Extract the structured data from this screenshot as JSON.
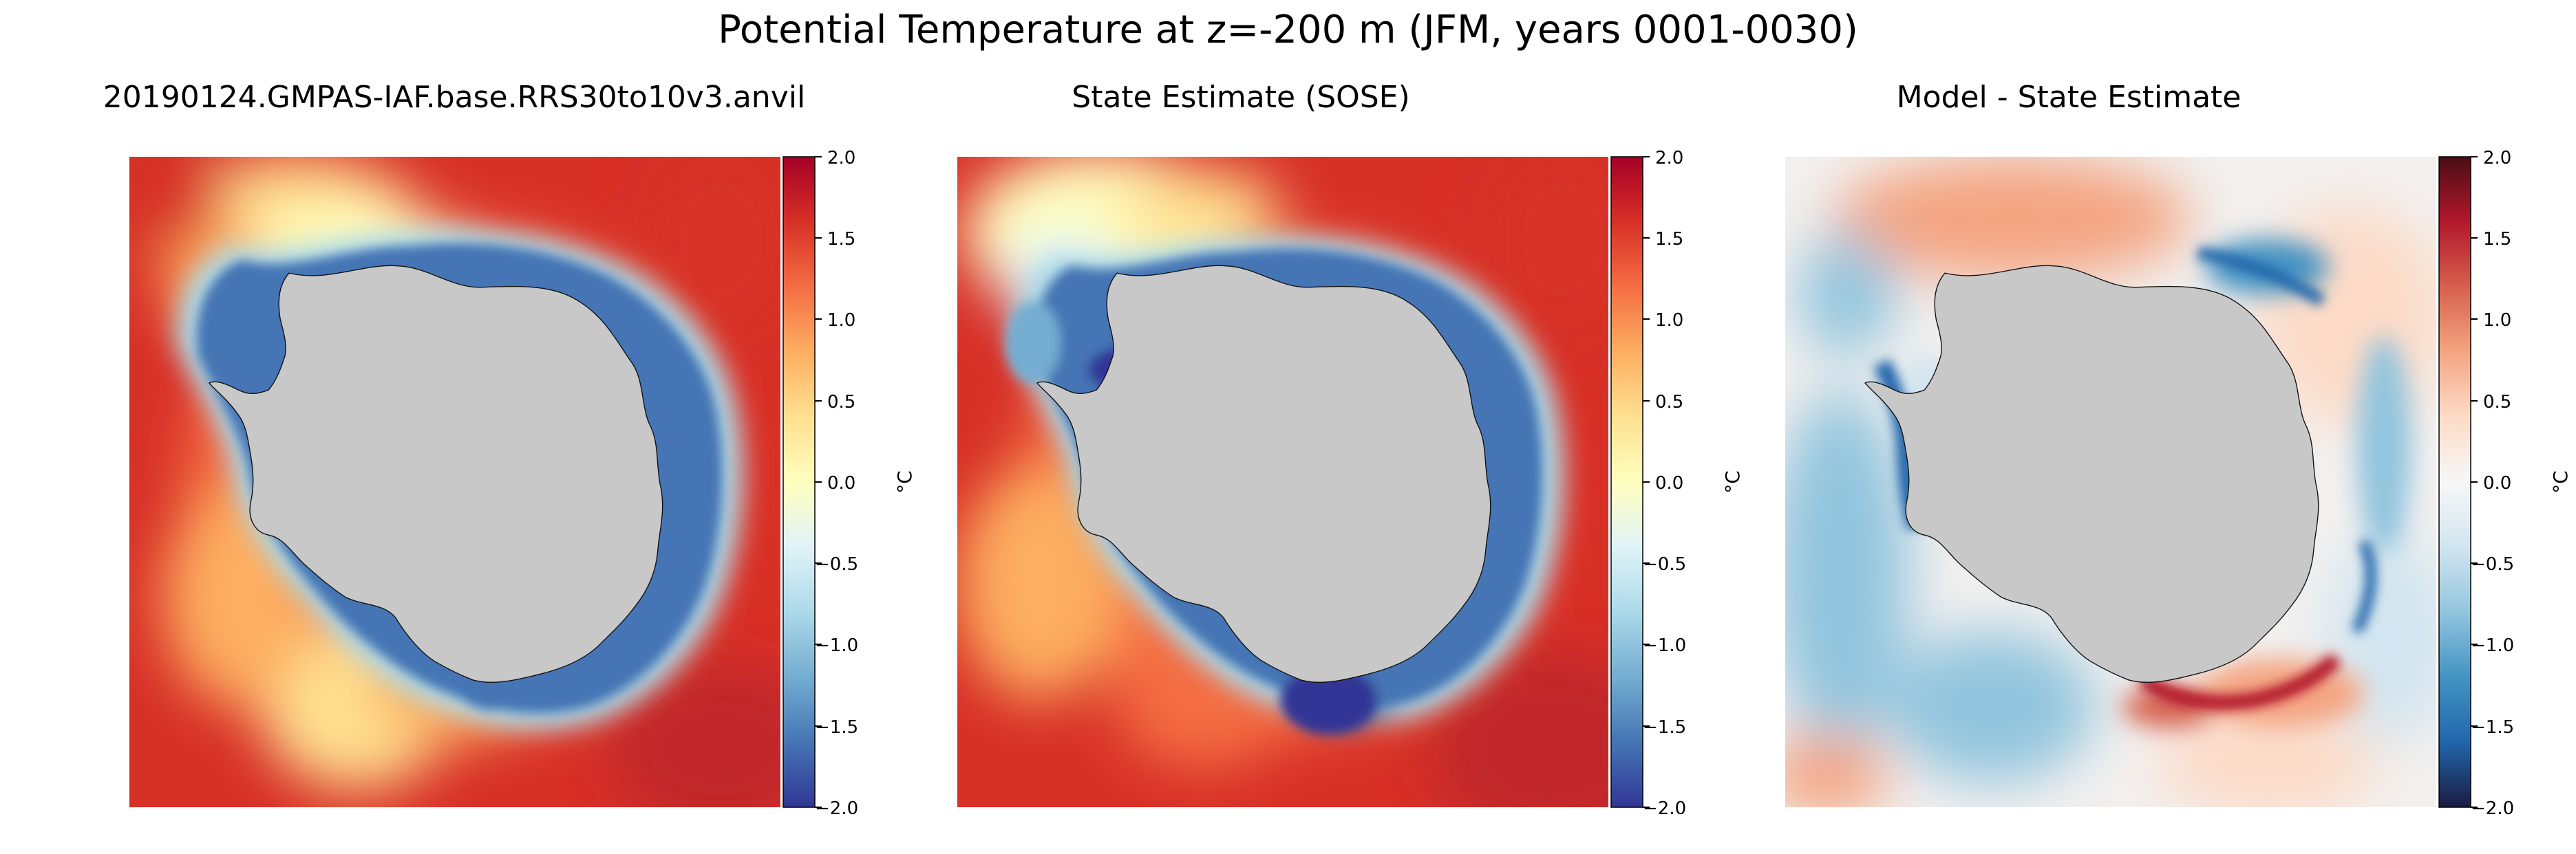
{
  "figure": {
    "title": "Potential Temperature at z=-200 m (JFM, years 0001-0030)"
  },
  "panels": [
    {
      "title": "20190124.GMPAS-IAF.base.RRS30to10v3.anvil",
      "colormap": "RdYlBu_r",
      "colorbar": {
        "label": "°C",
        "ticks": [
          "2.0",
          "1.5",
          "1.0",
          "0.5",
          "0.0",
          "−0.5",
          "−1.0",
          "−1.5",
          "−2.0"
        ]
      }
    },
    {
      "title": "State Estimate (SOSE)",
      "colormap": "RdYlBu_r",
      "colorbar": {
        "label": "°C",
        "ticks": [
          "2.0",
          "1.5",
          "1.0",
          "0.5",
          "0.0",
          "−0.5",
          "−1.0",
          "−1.5",
          "−2.0"
        ]
      }
    },
    {
      "title": "Model - State Estimate",
      "colormap": "RdBu_r",
      "colorbar": {
        "label": "°C",
        "ticks": [
          "2.0",
          "1.5",
          "1.0",
          "0.5",
          "0.0",
          "−0.5",
          "−1.0",
          "−1.5",
          "−2.0"
        ]
      }
    }
  ],
  "colors": {
    "land": "#c8c8c8",
    "RdYlBu_r": [
      "#313695",
      "#4575b4",
      "#74add1",
      "#abd9e9",
      "#e0f3f8",
      "#ffffbf",
      "#fee090",
      "#fdae61",
      "#f46d43",
      "#d73027",
      "#a50026"
    ],
    "RdBu_r": [
      "#1a1b40",
      "#2166ac",
      "#4393c3",
      "#92c5de",
      "#d1e5f0",
      "#f7f7f7",
      "#fddbc7",
      "#f4a582",
      "#d6604d",
      "#b2182b",
      "#4a0d16"
    ]
  },
  "chart_data": [
    {
      "type": "heatmap",
      "title": "20190124.GMPAS-IAF.base.RRS30to10v3.anvil",
      "projection": "south-polar stereographic",
      "variable": "Potential Temperature at z=-200 m (JFM, years 0001-0030)",
      "colorbar_label": "°C",
      "vmin": -2.0,
      "vmax": 2.0,
      "colormap": "RdYlBu_r"
    },
    {
      "type": "heatmap",
      "title": "State Estimate (SOSE)",
      "projection": "south-polar stereographic",
      "variable": "Potential Temperature at z=-200 m (JFM, years 0001-0030)",
      "colorbar_label": "°C",
      "vmin": -2.0,
      "vmax": 2.0,
      "colormap": "RdYlBu_r"
    },
    {
      "type": "heatmap",
      "title": "Model - State Estimate",
      "projection": "south-polar stereographic",
      "variable": "Potential Temperature at z=-200 m (JFM, years 0001-0030)",
      "colorbar_label": "°C",
      "vmin": -2.0,
      "vmax": 2.0,
      "colormap": "RdBu_r"
    }
  ]
}
